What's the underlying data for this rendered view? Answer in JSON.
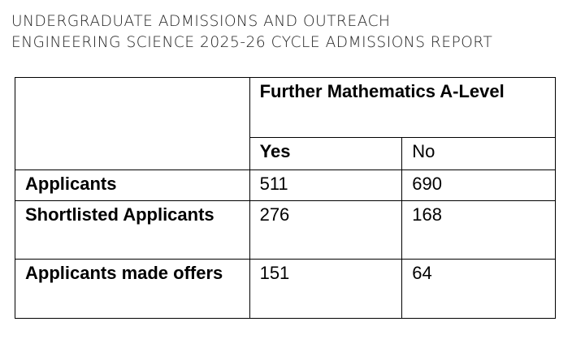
{
  "header": {
    "line1": "UNDERGRADUATE ADMISSIONS AND OUTREACH",
    "line2": "ENGINEERING SCIENCE 2025-26 CYCLE ADMISSIONS REPORT"
  },
  "table": {
    "group_header": "Further Mathematics A-Level",
    "sub_headers": [
      "Yes",
      "No"
    ],
    "rows": [
      {
        "label": "Applicants",
        "yes": "511",
        "no": "690"
      },
      {
        "label": "Shortlisted Applicants",
        "yes": "276",
        "no": "168"
      },
      {
        "label": "Applicants made offers",
        "yes": "151",
        "no": "64"
      }
    ]
  }
}
